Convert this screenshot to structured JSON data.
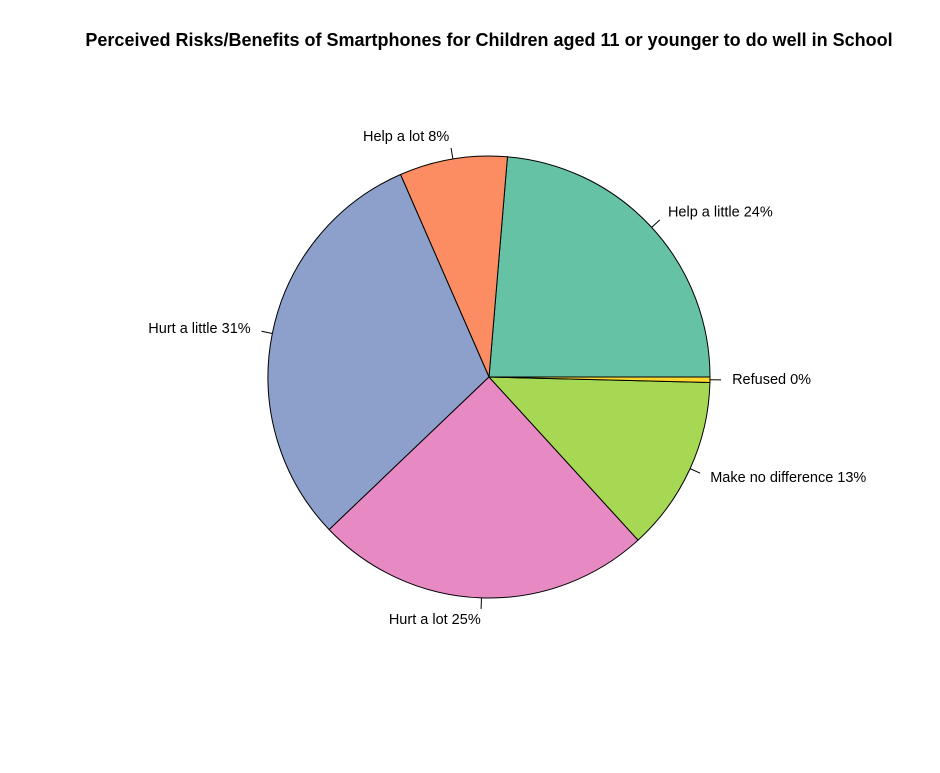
{
  "chart_data": {
    "type": "pie",
    "title": "Perceived Risks/Benefits of Smartphones for Children aged 11 or younger to do well in School",
    "slices": [
      {
        "label": "Help a little",
        "value": 24,
        "display": "24%",
        "color": "#66c2a5"
      },
      {
        "label": "Help a lot",
        "value": 8,
        "display": "8%",
        "color": "#fc8d62"
      },
      {
        "label": "Hurt a little",
        "value": 31,
        "display": "31%",
        "color": "#8da0cb"
      },
      {
        "label": "Hurt a lot",
        "value": 25,
        "display": "25%",
        "color": "#e78ac3"
      },
      {
        "label": "Make no difference",
        "value": 13,
        "display": "13%",
        "color": "#a6d854"
      },
      {
        "label": "Refused",
        "value": 0.4,
        "display": "0%",
        "color": "#ffd92f"
      }
    ],
    "start": "3 o'clock",
    "direction": "counterclockwise"
  }
}
